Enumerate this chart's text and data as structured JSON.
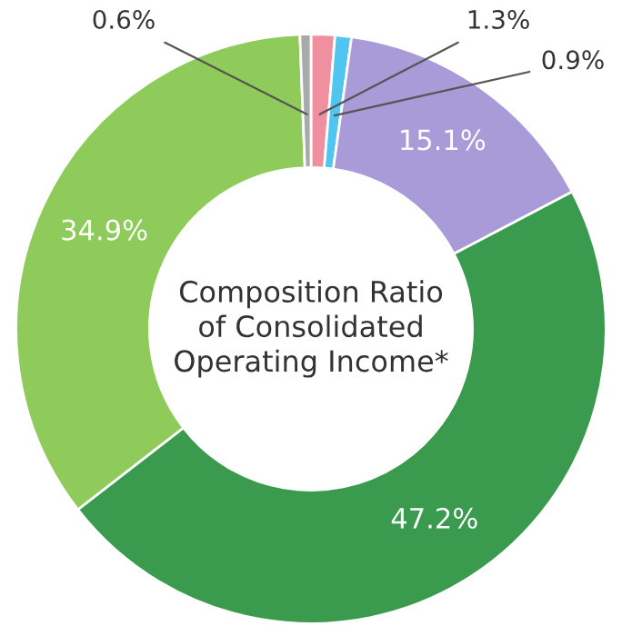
{
  "chart_data": {
    "type": "donut",
    "title": "Composition Ratio\nof Consolidated\nOperating Income*",
    "categories": [
      null,
      null,
      null,
      null,
      null,
      null
    ],
    "values": [
      1.3,
      0.9,
      15.1,
      47.2,
      34.9,
      0.6
    ],
    "value_labels": [
      "1.3%",
      "0.9%",
      "15.1%",
      "47.2%",
      "34.9%",
      "0.6%"
    ],
    "colors": [
      "#f0909f",
      "#4fc6ef",
      "#a99ad8",
      "#3a9a4e",
      "#8ecb5a",
      "#a9a9a9"
    ]
  }
}
